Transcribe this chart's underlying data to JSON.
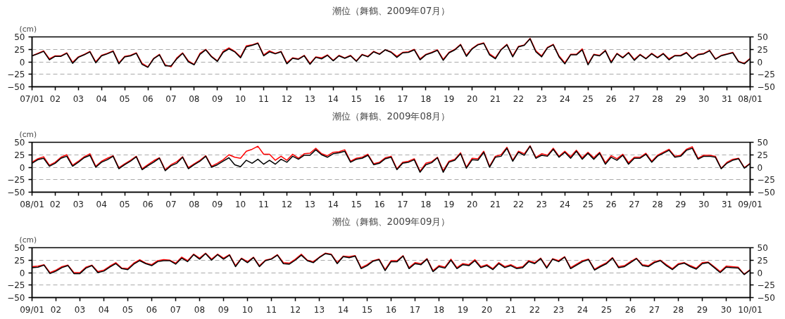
{
  "chart_data": [
    {
      "type": "line",
      "title": "潮位（舞鶴、2009年07月）",
      "ylabel": "(cm)",
      "xlim": [
        1,
        32
      ],
      "ylim": [
        -50,
        50
      ],
      "yticks": [
        -50,
        -25,
        0,
        25,
        50
      ],
      "y2lim": [
        -50,
        50
      ],
      "y2ticks": [
        -50,
        -25,
        0,
        25,
        50
      ],
      "grid": "y",
      "xticks": [
        {
          "value": 1,
          "label": "07/01"
        },
        {
          "value": 2,
          "label": "02"
        },
        {
          "value": 3,
          "label": "03"
        },
        {
          "value": 4,
          "label": "04"
        },
        {
          "value": 5,
          "label": "05"
        },
        {
          "value": 6,
          "label": "06"
        },
        {
          "value": 7,
          "label": "07"
        },
        {
          "value": 8,
          "label": "08"
        },
        {
          "value": 9,
          "label": "09"
        },
        10,
        11,
        12,
        13,
        14,
        15,
        16,
        17,
        18,
        19,
        20,
        21,
        22,
        23,
        24,
        25,
        26,
        27,
        28,
        29,
        30,
        31,
        {
          "value": 32,
          "label": "08/01"
        }
      ],
      "x": [
        1,
        1.25,
        1.5,
        1.75,
        2,
        2.25,
        2.5,
        2.75,
        3,
        3.25,
        3.5,
        3.75,
        4,
        4.25,
        4.5,
        4.75,
        5,
        5.25,
        5.5,
        5.75,
        6,
        6.25,
        6.5,
        6.75,
        7,
        7.25,
        7.5,
        7.75,
        8,
        8.25,
        8.5,
        8.75,
        9,
        9.25,
        9.5,
        9.75,
        10,
        10.25,
        10.5,
        10.75,
        11,
        11.25,
        11.5,
        11.75,
        12,
        12.25,
        12.5,
        12.75,
        13,
        13.25,
        13.5,
        13.75,
        14,
        14.25,
        14.5,
        14.75,
        15,
        15.25,
        15.5,
        15.75,
        16,
        16.25,
        16.5,
        16.75,
        17,
        17.25,
        17.5,
        17.75,
        18,
        18.25,
        18.5,
        18.75,
        19,
        19.25,
        19.5,
        19.75,
        20,
        20.25,
        20.5,
        20.75,
        21,
        21.25,
        21.5,
        21.75,
        22,
        22.25,
        22.5,
        22.75,
        23,
        23.25,
        23.5,
        23.75,
        24,
        24.25,
        24.5,
        24.75,
        25,
        25.25,
        25.5,
        25.75,
        26,
        26.25,
        26.5,
        26.75,
        27,
        27.25,
        27.5,
        27.75,
        28,
        28.25,
        28.5,
        28.75,
        29,
        29.25,
        29.5,
        29.75,
        30,
        30.25,
        30.5,
        30.75,
        31,
        31.25,
        31.5,
        31.75,
        32
      ],
      "series": [
        {
          "color": "#ff0000",
          "values": [
            12,
            17,
            22,
            6,
            12,
            12,
            18,
            -1,
            10,
            15,
            21,
            0,
            13,
            17,
            22,
            -2,
            11,
            13,
            18,
            -3,
            -10,
            7,
            15,
            -6,
            -10,
            8,
            18,
            2,
            -5,
            17,
            25,
            11,
            2,
            21,
            28,
            21,
            10,
            32,
            34,
            38,
            14,
            22,
            17,
            21,
            -2,
            8,
            6,
            13,
            -3,
            10,
            8,
            14,
            3,
            13,
            8,
            13,
            2,
            15,
            11,
            21,
            16,
            24,
            20,
            11,
            19,
            20,
            25,
            6,
            15,
            19,
            24,
            5,
            19,
            25,
            35,
            13,
            27,
            35,
            38,
            16,
            8,
            25,
            35,
            12,
            31,
            34,
            47,
            22,
            12,
            29,
            35,
            12,
            -2,
            15,
            15,
            26,
            -4,
            15,
            13,
            23,
            0,
            17,
            9,
            19,
            5,
            15,
            7,
            17,
            9,
            17,
            6,
            13,
            13,
            19,
            7,
            15,
            17,
            23,
            6,
            13,
            16,
            19,
            1,
            -3,
            7
          ]
        },
        {
          "color": "#000000",
          "values": [
            12,
            16,
            21,
            4,
            11,
            11,
            17,
            -3,
            9,
            14,
            20,
            -2,
            12,
            16,
            21,
            -4,
            10,
            12,
            17,
            -5,
            -11,
            6,
            14,
            -8,
            -8,
            6,
            17,
            0,
            -6,
            15,
            24,
            10,
            1,
            19,
            26,
            20,
            8,
            30,
            33,
            37,
            12,
            20,
            16,
            20,
            -4,
            7,
            5,
            12,
            -5,
            9,
            6,
            13,
            2,
            12,
            7,
            12,
            1,
            14,
            10,
            20,
            15,
            24,
            19,
            9,
            18,
            19,
            24,
            4,
            14,
            18,
            23,
            3,
            18,
            24,
            34,
            11,
            26,
            34,
            37,
            14,
            6,
            24,
            34,
            10,
            30,
            33,
            46,
            20,
            10,
            28,
            34,
            10,
            -4,
            14,
            14,
            24,
            -6,
            14,
            12,
            22,
            -2,
            16,
            8,
            18,
            3,
            14,
            6,
            16,
            8,
            16,
            4,
            12,
            12,
            18,
            6,
            14,
            16,
            22,
            5,
            12,
            15,
            18,
            0,
            -4,
            6
          ]
        }
      ]
    },
    {
      "type": "line",
      "title": "潮位（舞鶴、2009年08月）",
      "ylabel": "(cm)",
      "xlim": [
        1,
        32
      ],
      "ylim": [
        -50,
        50
      ],
      "yticks": [
        -50,
        -25,
        0,
        25,
        50
      ],
      "y2lim": [
        -50,
        50
      ],
      "y2ticks": [
        -50,
        -25,
        0,
        25,
        50
      ],
      "grid": "y",
      "xticks": [
        {
          "value": 1,
          "label": "08/01"
        },
        {
          "value": 2,
          "label": "02"
        },
        {
          "value": 3,
          "label": "03"
        },
        {
          "value": 4,
          "label": "04"
        },
        {
          "value": 5,
          "label": "05"
        },
        {
          "value": 6,
          "label": "06"
        },
        {
          "value": 7,
          "label": "07"
        },
        {
          "value": 8,
          "label": "08"
        },
        {
          "value": 9,
          "label": "09"
        },
        10,
        11,
        12,
        13,
        14,
        15,
        16,
        17,
        18,
        19,
        20,
        21,
        22,
        23,
        24,
        25,
        26,
        27,
        28,
        29,
        30,
        31,
        {
          "value": 32,
          "label": "09/01"
        }
      ],
      "x": [
        1,
        1.25,
        1.5,
        1.75,
        2,
        2.25,
        2.5,
        2.75,
        3,
        3.25,
        3.5,
        3.75,
        4,
        4.25,
        4.5,
        4.75,
        5,
        5.25,
        5.5,
        5.75,
        6,
        6.25,
        6.5,
        6.75,
        7,
        7.25,
        7.5,
        7.75,
        8,
        8.25,
        8.5,
        8.75,
        9,
        9.25,
        9.5,
        9.75,
        10,
        10.25,
        10.5,
        10.75,
        11,
        11.25,
        11.5,
        11.75,
        12,
        12.25,
        12.5,
        12.75,
        13,
        13.25,
        13.5,
        13.75,
        14,
        14.25,
        14.5,
        14.75,
        15,
        15.25,
        15.5,
        15.75,
        16,
        16.25,
        16.5,
        16.75,
        17,
        17.25,
        17.5,
        17.75,
        18,
        18.25,
        18.5,
        18.75,
        19,
        19.25,
        19.5,
        19.75,
        20,
        20.25,
        20.5,
        20.75,
        21,
        21.25,
        21.5,
        21.75,
        22,
        22.25,
        22.5,
        22.75,
        23,
        23.25,
        23.5,
        23.75,
        24,
        24.25,
        24.5,
        24.75,
        25,
        25.25,
        25.5,
        25.75,
        26,
        26.25,
        26.5,
        26.75,
        27,
        27.25,
        27.5,
        27.75,
        28,
        28.25,
        28.5,
        28.75,
        29,
        29.25,
        29.5,
        29.75,
        30,
        30.25,
        30.5,
        30.75,
        31,
        31.25,
        31.5,
        31.75,
        32
      ],
      "series": [
        {
          "color": "#ff0000",
          "values": [
            10,
            17,
            21,
            4,
            10,
            20,
            25,
            4,
            12,
            21,
            27,
            2,
            12,
            18,
            23,
            -1,
            7,
            14,
            22,
            -3,
            5,
            13,
            19,
            -5,
            5,
            11,
            21,
            -1,
            7,
            14,
            23,
            2,
            8,
            15,
            25,
            20,
            18,
            32,
            36,
            42,
            26,
            26,
            14,
            22,
            14,
            26,
            18,
            27,
            28,
            38,
            27,
            23,
            30,
            31,
            35,
            12,
            18,
            20,
            26,
            7,
            10,
            19,
            22,
            -3,
            10,
            12,
            17,
            -8,
            8,
            11,
            20,
            -7,
            12,
            16,
            29,
            0,
            18,
            17,
            32,
            2,
            22,
            25,
            40,
            14,
            32,
            27,
            43,
            20,
            27,
            24,
            38,
            22,
            32,
            21,
            34,
            19,
            30,
            19,
            30,
            9,
            23,
            17,
            26,
            9,
            20,
            20,
            28,
            12,
            24,
            30,
            36,
            22,
            24,
            36,
            41,
            18,
            24,
            24,
            22,
            -2,
            10,
            16,
            18,
            -1,
            8
          ]
        },
        {
          "color": "#000000",
          "values": [
            8,
            15,
            18,
            2,
            8,
            18,
            22,
            2,
            10,
            19,
            24,
            0,
            10,
            15,
            22,
            -3,
            5,
            12,
            21,
            -5,
            3,
            10,
            18,
            -7,
            3,
            8,
            20,
            -3,
            5,
            12,
            22,
            0,
            5,
            12,
            19,
            5,
            1,
            14,
            8,
            16,
            6,
            14,
            6,
            16,
            10,
            22,
            16,
            24,
            24,
            35,
            25,
            20,
            27,
            29,
            32,
            10,
            16,
            18,
            24,
            5,
            8,
            17,
            20,
            -5,
            8,
            10,
            15,
            -10,
            5,
            9,
            19,
            -10,
            10,
            14,
            27,
            -2,
            15,
            14,
            30,
            0,
            20,
            22,
            38,
            12,
            30,
            24,
            42,
            18,
            24,
            22,
            36,
            20,
            30,
            18,
            32,
            16,
            28,
            16,
            28,
            6,
            20,
            14,
            24,
            6,
            18,
            18,
            26,
            10,
            22,
            28,
            34,
            20,
            22,
            34,
            38,
            16,
            22,
            22,
            20,
            -3,
            8,
            14,
            17,
            -2,
            7
          ]
        }
      ]
    },
    {
      "type": "line",
      "title": "潮位（舞鶴、2009年09月）",
      "ylabel": "(cm)",
      "xlim": [
        1,
        31
      ],
      "ylim": [
        -50,
        50
      ],
      "yticks": [
        -50,
        -25,
        0,
        25,
        50
      ],
      "y2lim": [
        -50,
        50
      ],
      "y2ticks": [
        -50,
        -25,
        0,
        25,
        50
      ],
      "grid": "y",
      "xticks": [
        {
          "value": 1,
          "label": "09/01"
        },
        {
          "value": 2,
          "label": "02"
        },
        {
          "value": 3,
          "label": "03"
        },
        {
          "value": 4,
          "label": "04"
        },
        {
          "value": 5,
          "label": "05"
        },
        {
          "value": 6,
          "label": "06"
        },
        {
          "value": 7,
          "label": "07"
        },
        {
          "value": 8,
          "label": "08"
        },
        {
          "value": 9,
          "label": "09"
        },
        10,
        11,
        12,
        13,
        14,
        15,
        16,
        17,
        18,
        19,
        20,
        21,
        22,
        23,
        24,
        25,
        26,
        27,
        28,
        29,
        30,
        {
          "value": 31,
          "label": "10/01"
        }
      ],
      "x": [
        1,
        1.25,
        1.5,
        1.75,
        2,
        2.25,
        2.5,
        2.75,
        3,
        3.25,
        3.5,
        3.75,
        4,
        4.25,
        4.5,
        4.75,
        5,
        5.25,
        5.5,
        5.75,
        6,
        6.25,
        6.5,
        6.75,
        7,
        7.25,
        7.5,
        7.75,
        8,
        8.25,
        8.5,
        8.75,
        9,
        9.25,
        9.5,
        9.75,
        10,
        10.25,
        10.5,
        10.75,
        11,
        11.25,
        11.5,
        11.75,
        12,
        12.25,
        12.5,
        12.75,
        13,
        13.25,
        13.5,
        13.75,
        14,
        14.25,
        14.5,
        14.75,
        15,
        15.25,
        15.5,
        15.75,
        16,
        16.25,
        16.5,
        16.75,
        17,
        17.25,
        17.5,
        17.75,
        18,
        18.25,
        18.5,
        18.75,
        19,
        19.25,
        19.5,
        19.75,
        20,
        20.25,
        20.5,
        20.75,
        21,
        21.25,
        21.5,
        21.75,
        22,
        22.25,
        22.5,
        22.75,
        23,
        23.25,
        23.5,
        23.75,
        24,
        24.25,
        24.5,
        24.75,
        25,
        25.25,
        25.5,
        25.75,
        26,
        26.25,
        26.5,
        26.75,
        27,
        27.25,
        27.5,
        27.75,
        28,
        28.25,
        28.5,
        28.75,
        29,
        29.25,
        29.5,
        29.75,
        30,
        30.25,
        30.5,
        30.75,
        31
      ],
      "series": [
        {
          "color": "#ff0000",
          "values": [
            12,
            13,
            16,
            0,
            5,
            12,
            15,
            0,
            0,
            11,
            15,
            2,
            5,
            13,
            20,
            9,
            8,
            19,
            26,
            19,
            16,
            24,
            26,
            25,
            19,
            31,
            24,
            37,
            29,
            39,
            27,
            37,
            29,
            36,
            14,
            29,
            22,
            31,
            14,
            25,
            28,
            36,
            20,
            19,
            27,
            37,
            25,
            22,
            31,
            39,
            37,
            20,
            33,
            32,
            34,
            10,
            16,
            24,
            27,
            6,
            24,
            24,
            34,
            10,
            20,
            18,
            28,
            4,
            14,
            11,
            27,
            10,
            18,
            16,
            26,
            12,
            16,
            8,
            20,
            12,
            16,
            10,
            12,
            24,
            20,
            29,
            11,
            28,
            24,
            32,
            10,
            17,
            24,
            27,
            7,
            14,
            20,
            30,
            12,
            14,
            22,
            29,
            16,
            14,
            22,
            25,
            16,
            8,
            18,
            20,
            14,
            9,
            20,
            21,
            12,
            2,
            13,
            12,
            11,
            -3,
            6
          ]
        },
        {
          "color": "#000000",
          "values": [
            10,
            11,
            15,
            -2,
            3,
            10,
            14,
            -2,
            -2,
            9,
            14,
            0,
            3,
            11,
            18,
            8,
            6,
            17,
            24,
            18,
            14,
            22,
            24,
            24,
            17,
            29,
            22,
            36,
            27,
            38,
            25,
            36,
            27,
            35,
            12,
            28,
            20,
            30,
            12,
            24,
            27,
            35,
            18,
            17,
            25,
            35,
            24,
            20,
            30,
            38,
            36,
            18,
            32,
            30,
            33,
            8,
            14,
            23,
            26,
            4,
            22,
            22,
            33,
            8,
            18,
            16,
            27,
            2,
            12,
            9,
            25,
            8,
            16,
            14,
            24,
            10,
            14,
            6,
            18,
            10,
            14,
            8,
            10,
            22,
            18,
            28,
            9,
            27,
            22,
            31,
            8,
            15,
            22,
            26,
            5,
            12,
            18,
            29,
            10,
            12,
            20,
            28,
            14,
            12,
            20,
            24,
            14,
            6,
            16,
            19,
            12,
            7,
            18,
            20,
            10,
            0,
            11,
            10,
            9,
            -4,
            5
          ]
        }
      ]
    }
  ]
}
